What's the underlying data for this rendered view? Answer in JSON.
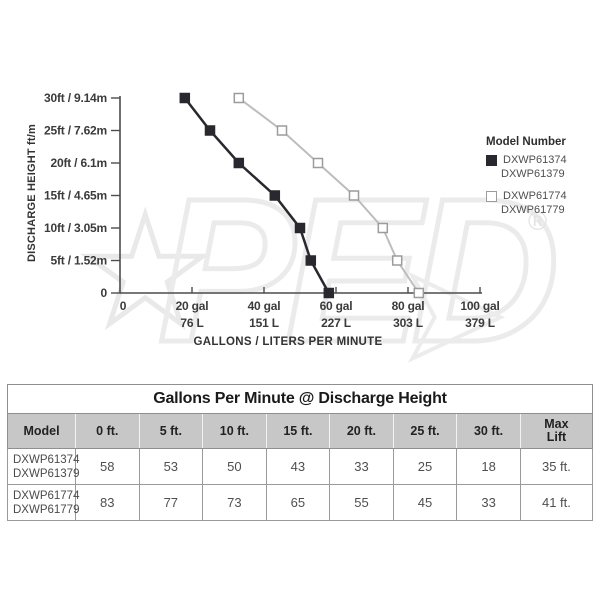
{
  "watermark": {
    "star": "★",
    "text": "PED",
    "arrow": "➤",
    "registered": "®"
  },
  "chart_data": {
    "type": "line",
    "title": "",
    "xlabel": "GALLONS / LITERS PER MINUTE",
    "ylabel": "DISCHARGE HEIGHT ft/m",
    "xlim": [
      0,
      100
    ],
    "ylim": [
      0,
      30
    ],
    "grid": false,
    "legend_position": "right",
    "axis_color": "#4c4c4c",
    "x_ticks": [
      {
        "value": 0,
        "gal": "0",
        "liters": ""
      },
      {
        "value": 20,
        "gal": "20 gal",
        "liters": "76 L"
      },
      {
        "value": 40,
        "gal": "40 gal",
        "liters": "151 L"
      },
      {
        "value": 60,
        "gal": "60 gal",
        "liters": "227 L"
      },
      {
        "value": 80,
        "gal": "80 gal",
        "liters": "303 L"
      },
      {
        "value": 100,
        "gal": "100 gal",
        "liters": "379 L"
      }
    ],
    "y_ticks": [
      {
        "value": 0,
        "label": "0"
      },
      {
        "value": 5,
        "label": "5ft / 1.52m"
      },
      {
        "value": 10,
        "label": "10ft / 3.05m"
      },
      {
        "value": 15,
        "label": "15ft / 4.65m"
      },
      {
        "value": 20,
        "label": "20ft / 6.1m"
      },
      {
        "value": 25,
        "label": "25ft / 7.62m"
      },
      {
        "value": 30,
        "label": "30ft / 9.14m"
      }
    ],
    "legend": {
      "title": "Model Number",
      "entries": [
        {
          "marker": "filled-square",
          "lines": [
            "DXWP61374",
            "DXWP61379"
          ]
        },
        {
          "marker": "open-square",
          "lines": [
            "DXWP61774",
            "DXWP61779"
          ]
        }
      ]
    },
    "series": [
      {
        "name": "DXWP61774 / DXWP61779",
        "marker": "open-square",
        "color": "#bdbdbd",
        "marker_fill": "#ffffff",
        "marker_stroke": "#9c9c9c",
        "line_width": 2,
        "points_gpm_ft": [
          [
            33,
            30
          ],
          [
            45,
            25
          ],
          [
            55,
            20
          ],
          [
            65,
            15
          ],
          [
            73,
            10
          ],
          [
            77,
            5
          ],
          [
            83,
            0
          ]
        ]
      },
      {
        "name": "DXWP61374 / DXWP61379",
        "marker": "filled-square",
        "color": "#28282e",
        "marker_fill": "#28282e",
        "marker_stroke": "#28282e",
        "line_width": 2.5,
        "points_gpm_ft": [
          [
            18,
            30
          ],
          [
            25,
            25
          ],
          [
            33,
            20
          ],
          [
            43,
            15
          ],
          [
            50,
            10
          ],
          [
            53,
            5
          ],
          [
            58,
            0
          ]
        ]
      }
    ]
  },
  "table": {
    "title": "Gallons Per Minute @ Discharge Height",
    "columns": [
      "Model",
      "0 ft.",
      "5 ft.",
      "10 ft.",
      "15 ft.",
      "20 ft.",
      "25 ft.",
      "30 ft.",
      "Max Lift"
    ],
    "rows": [
      {
        "models": [
          "DXWP61374",
          "DXWP61379"
        ],
        "values": [
          "58",
          "53",
          "50",
          "43",
          "33",
          "25",
          "18",
          "35 ft."
        ]
      },
      {
        "models": [
          "DXWP61774",
          "DXWP61779"
        ],
        "values": [
          "83",
          "77",
          "73",
          "65",
          "55",
          "45",
          "33",
          "41 ft."
        ]
      }
    ]
  }
}
